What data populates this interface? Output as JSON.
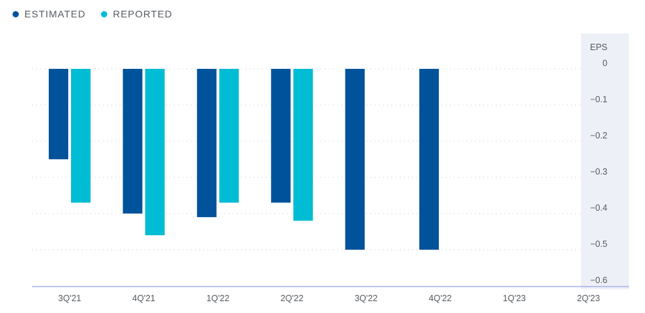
{
  "legend": [
    {
      "label": "ESTIMATED",
      "color": "#00529b"
    },
    {
      "label": "REPORTED",
      "color": "#00bcd4"
    }
  ],
  "chart_data": {
    "type": "bar",
    "categories": [
      "3Q'21",
      "4Q'21",
      "1Q'22",
      "2Q'22",
      "3Q'22",
      "4Q'22",
      "1Q'23",
      "2Q'23"
    ],
    "series": [
      {
        "name": "ESTIMATED",
        "color": "#00529b",
        "values": [
          -0.25,
          -0.4,
          -0.41,
          -0.37,
          -0.5,
          -0.5,
          null,
          null
        ]
      },
      {
        "name": "REPORTED",
        "color": "#00bcd4",
        "values": [
          -0.37,
          -0.46,
          -0.37,
          -0.42,
          null,
          null,
          null,
          null
        ]
      }
    ],
    "ylabel": "EPS",
    "yticks": [
      "0",
      "−0.1",
      "−0.2",
      "−0.3",
      "−0.4",
      "−0.5",
      "−0.6"
    ],
    "ylim": [
      -0.6,
      0
    ],
    "grid": true,
    "legend_position": "top-left",
    "axis_panel_color": "#eef0f7"
  }
}
